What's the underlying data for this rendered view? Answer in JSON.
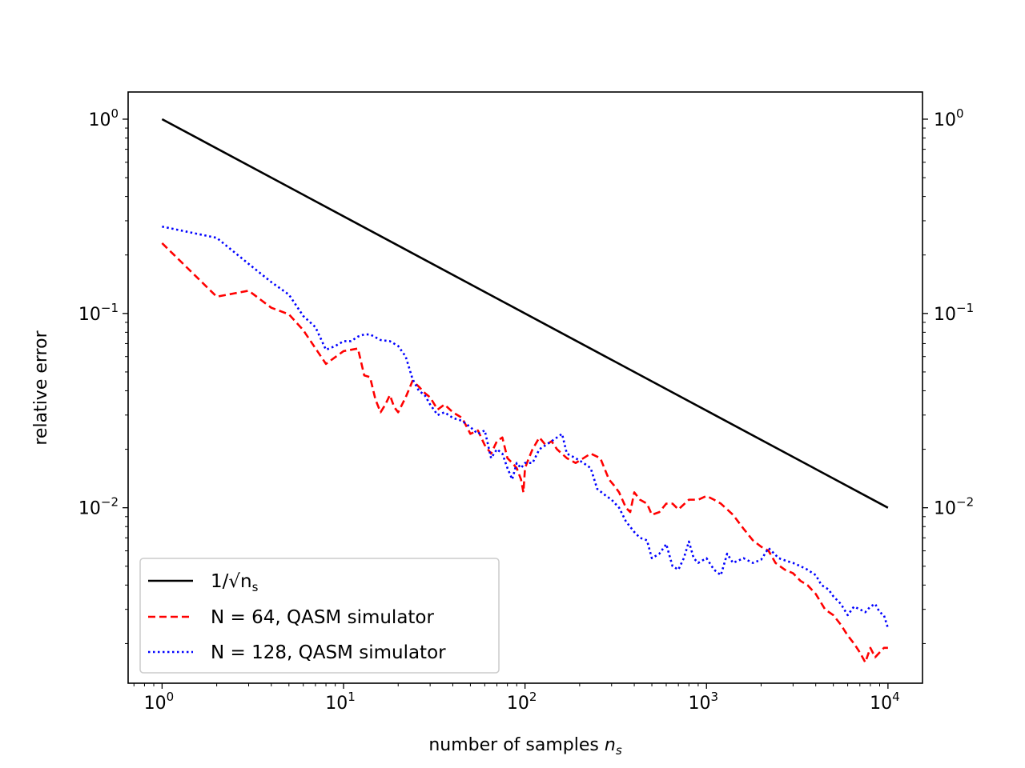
{
  "chart_data": {
    "type": "line",
    "title": "",
    "xlabel": "number of samples",
    "xlabel_var": "n",
    "xlabel_sub": "s",
    "ylabel": "relative error",
    "xscale": "log",
    "yscale": "log",
    "xlim": [
      0.65,
      15500
    ],
    "ylim": [
      0.00125,
      1.38
    ],
    "x_ticks": [
      {
        "base": "10",
        "exp": "0"
      },
      {
        "base": "10",
        "exp": "1"
      },
      {
        "base": "10",
        "exp": "2"
      },
      {
        "base": "10",
        "exp": "3"
      },
      {
        "base": "10",
        "exp": "4"
      }
    ],
    "y_ticks": [
      {
        "base": "10",
        "exp": "0"
      },
      {
        "base": "10",
        "exp": "−1"
      },
      {
        "base": "10",
        "exp": "−2"
      }
    ],
    "right_axis_mirrored": true,
    "legend_position": "lower-left",
    "series": [
      {
        "name": "1/√n_s",
        "legend_label": "1/√n",
        "legend_sub": "s",
        "color": "#000000",
        "style": "solid",
        "x": [
          1,
          10000
        ],
        "y": [
          1.0,
          0.01
        ]
      },
      {
        "name": "N = 64, QASM simulator",
        "legend_label": "N = 64, QASM simulator",
        "color": "#ff0000",
        "style": "dashed",
        "x": [
          1,
          2,
          3,
          4,
          5,
          6,
          8,
          10,
          12,
          13,
          14,
          15,
          16,
          17,
          18,
          19,
          20,
          22,
          24,
          26,
          28,
          30,
          33,
          36,
          40,
          45,
          50,
          55,
          60,
          65,
          70,
          75,
          80,
          85,
          90,
          95,
          98,
          100,
          105,
          110,
          120,
          130,
          140,
          150,
          170,
          190,
          210,
          230,
          260,
          290,
          310,
          330,
          360,
          380,
          400,
          430,
          470,
          500,
          550,
          600,
          650,
          700,
          800,
          900,
          1000,
          1100,
          1200,
          1400,
          1600,
          1800,
          2000,
          2200,
          2400,
          2700,
          3000,
          3300,
          3600,
          4000,
          4500,
          5000,
          5500,
          6000,
          6500,
          7000,
          7500,
          8000,
          8500,
          9000,
          9500,
          10000
        ],
        "y": [
          0.23,
          0.122,
          0.131,
          0.107,
          0.099,
          0.082,
          0.055,
          0.064,
          0.066,
          0.048,
          0.047,
          0.036,
          0.031,
          0.034,
          0.038,
          0.033,
          0.031,
          0.037,
          0.045,
          0.042,
          0.039,
          0.037,
          0.032,
          0.034,
          0.031,
          0.029,
          0.024,
          0.025,
          0.021,
          0.019,
          0.022,
          0.023,
          0.018,
          0.017,
          0.016,
          0.014,
          0.012,
          0.016,
          0.018,
          0.02,
          0.023,
          0.021,
          0.022,
          0.02,
          0.018,
          0.017,
          0.018,
          0.019,
          0.018,
          0.014,
          0.013,
          0.012,
          0.01,
          0.0095,
          0.012,
          0.011,
          0.0105,
          0.0092,
          0.0095,
          0.0105,
          0.0105,
          0.0098,
          0.011,
          0.011,
          0.0115,
          0.011,
          0.0105,
          0.0092,
          0.0078,
          0.0068,
          0.0063,
          0.006,
          0.0052,
          0.0048,
          0.0046,
          0.0042,
          0.004,
          0.0036,
          0.003,
          0.0028,
          0.0025,
          0.0022,
          0.002,
          0.0018,
          0.0016,
          0.0019,
          0.0017,
          0.0018,
          0.0019,
          0.0019
        ]
      },
      {
        "name": "N = 128, QASM simulator",
        "legend_label": "N = 128, QASM simulator",
        "color": "#0000ff",
        "style": "dotted",
        "x": [
          1,
          2,
          3,
          4,
          5,
          6,
          7,
          8,
          9,
          10,
          11,
          12,
          13,
          14,
          16,
          18,
          20,
          22,
          24,
          26,
          28,
          30,
          33,
          36,
          40,
          45,
          50,
          55,
          60,
          65,
          70,
          75,
          80,
          85,
          90,
          95,
          100,
          110,
          120,
          130,
          140,
          150,
          160,
          170,
          190,
          210,
          230,
          250,
          280,
          300,
          330,
          360,
          400,
          430,
          470,
          500,
          550,
          600,
          650,
          700,
          750,
          800,
          850,
          900,
          1000,
          1100,
          1200,
          1300,
          1400,
          1600,
          1800,
          2000,
          2200,
          2500,
          2800,
          3000,
          3300,
          3600,
          4000,
          4300,
          4700,
          5000,
          5500,
          6000,
          6500,
          7000,
          7500,
          8000,
          8500,
          9000,
          9500,
          10000
        ],
        "y": [
          0.28,
          0.245,
          0.18,
          0.145,
          0.125,
          0.097,
          0.085,
          0.065,
          0.068,
          0.072,
          0.072,
          0.076,
          0.078,
          0.078,
          0.073,
          0.072,
          0.068,
          0.06,
          0.046,
          0.04,
          0.038,
          0.034,
          0.03,
          0.031,
          0.029,
          0.028,
          0.026,
          0.024,
          0.025,
          0.018,
          0.02,
          0.019,
          0.016,
          0.014,
          0.017,
          0.016,
          0.017,
          0.017,
          0.02,
          0.021,
          0.022,
          0.023,
          0.024,
          0.019,
          0.018,
          0.017,
          0.016,
          0.0125,
          0.0115,
          0.011,
          0.01,
          0.0085,
          0.0075,
          0.007,
          0.0068,
          0.0055,
          0.0058,
          0.0065,
          0.005,
          0.0048,
          0.0055,
          0.0067,
          0.0055,
          0.0052,
          0.0055,
          0.0048,
          0.0045,
          0.0058,
          0.0052,
          0.0055,
          0.0052,
          0.0054,
          0.0062,
          0.0055,
          0.0053,
          0.0052,
          0.005,
          0.0048,
          0.0045,
          0.004,
          0.0038,
          0.0035,
          0.0032,
          0.0028,
          0.0031,
          0.003,
          0.0029,
          0.0031,
          0.0032,
          0.0029,
          0.0028,
          0.0024
        ]
      }
    ]
  }
}
